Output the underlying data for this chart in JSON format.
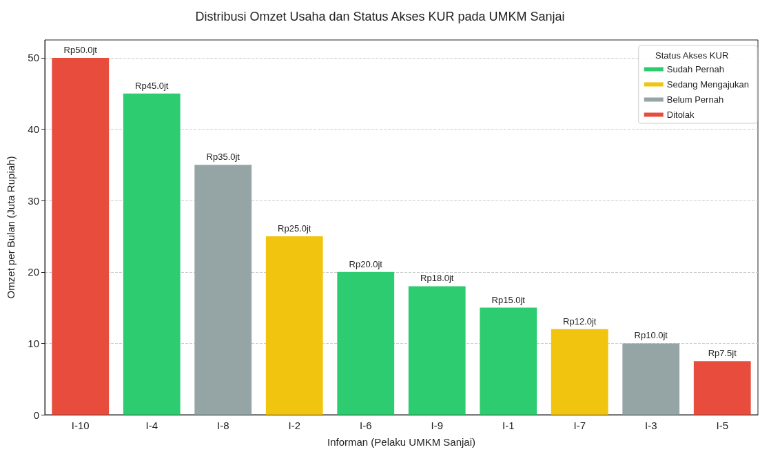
{
  "chart_data": {
    "type": "bar",
    "title": "Distribusi Omzet Usaha dan Status Akses KUR pada UMKM Sanjai",
    "xlabel": "Informan (Pelaku UMKM Sanjai)",
    "ylabel": "Omzet per Bulan (Juta Rupiah)",
    "legend_title": "Status Akses KUR",
    "categories": [
      "I-10",
      "I-4",
      "I-8",
      "I-2",
      "I-6",
      "I-9",
      "I-1",
      "I-7",
      "I-3",
      "I-5"
    ],
    "series": [
      {
        "name": "Sudah Pernah",
        "color": "#2ecc71",
        "values": [
          null,
          45,
          null,
          null,
          20,
          18,
          15,
          null,
          null,
          null
        ],
        "value_labels": [
          null,
          "Rp45.0jt",
          null,
          null,
          "Rp20.0jt",
          "Rp18.0jt",
          "Rp15.0jt",
          null,
          null,
          null
        ]
      },
      {
        "name": "Sedang Mengajukan",
        "color": "#f1c40f",
        "values": [
          null,
          null,
          null,
          25,
          null,
          null,
          null,
          12,
          null,
          null
        ],
        "value_labels": [
          null,
          null,
          null,
          "Rp25.0jt",
          null,
          null,
          null,
          "Rp12.0jt",
          null,
          null
        ]
      },
      {
        "name": "Belum Pernah",
        "color": "#95a5a6",
        "values": [
          null,
          null,
          35,
          null,
          null,
          null,
          null,
          null,
          10,
          null
        ],
        "value_labels": [
          null,
          null,
          "Rp35.0jt",
          null,
          null,
          null,
          null,
          null,
          "Rp10.0jt",
          null
        ]
      },
      {
        "name": "Ditolak",
        "color": "#e74c3c",
        "values": [
          50,
          null,
          null,
          null,
          null,
          null,
          null,
          null,
          null,
          7.5
        ],
        "value_labels": [
          "Rp50.0jt",
          null,
          null,
          null,
          null,
          null,
          null,
          null,
          null,
          "Rp7.5jt"
        ]
      }
    ],
    "ylim": [
      0,
      52.5
    ],
    "yticks": [
      0,
      10,
      20,
      30,
      40,
      50
    ],
    "grid": "y",
    "legend": "top right"
  }
}
